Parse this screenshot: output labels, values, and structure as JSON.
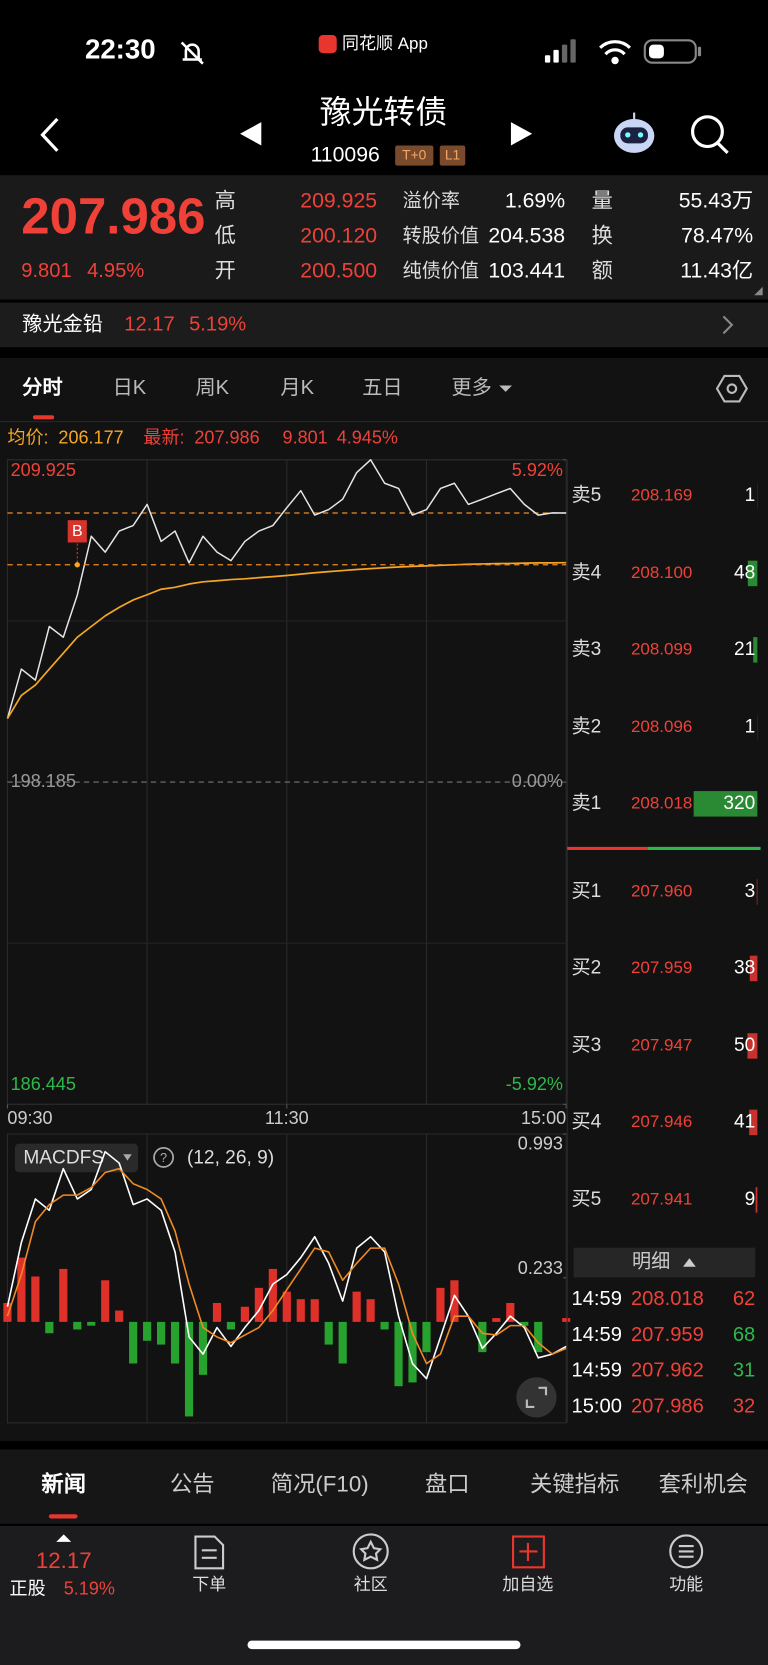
{
  "status_bar": {
    "time": "22:30",
    "app": "同花顺 App"
  },
  "header": {
    "title": "豫光转债",
    "code": "110096",
    "badges": [
      "T+0",
      "L1"
    ]
  },
  "quote": {
    "price": "207.986",
    "change": "9.801",
    "change_pct": "4.95%",
    "stats": [
      {
        "label": "高",
        "value": "209.925"
      },
      {
        "label": "低",
        "value": "200.120"
      },
      {
        "label": "开",
        "value": "200.500"
      },
      {
        "label": "溢价率",
        "value": "1.69%"
      },
      {
        "label": "转股价值",
        "value": "204.538"
      },
      {
        "label": "纯债价值",
        "value": "103.441"
      },
      {
        "label": "量",
        "value": "55.43万"
      },
      {
        "label": "换",
        "value": "78.47%"
      },
      {
        "label": "额",
        "value": "11.43亿"
      }
    ]
  },
  "underlying": {
    "name": "豫光金铅",
    "price": "12.17",
    "change_pct": "5.19%"
  },
  "tabs": [
    "分时",
    "日K",
    "周K",
    "月K",
    "五日",
    "更多"
  ],
  "info_line": {
    "avg_label": "均价:",
    "avg": "206.177",
    "latest_label": "最新:",
    "latest": "207.986",
    "change": "9.801",
    "change_pct": "4.945%"
  },
  "chart_data": [
    {
      "type": "line",
      "x": [
        0,
        6,
        12,
        18,
        24,
        30,
        36,
        42,
        48,
        54,
        60,
        66,
        72,
        78,
        84,
        90,
        96,
        102,
        108,
        114,
        120,
        126,
        132,
        138,
        144,
        150,
        156,
        162,
        168,
        174,
        180,
        186,
        192,
        198,
        204,
        210,
        216,
        222,
        228,
        234,
        240
      ],
      "xlim": [
        0,
        240
      ],
      "xticks": [
        {
          "value": 0,
          "label": "09:30"
        },
        {
          "value": 120,
          "label": "11:30"
        },
        {
          "value": 240,
          "label": "15:00"
        }
      ],
      "ylim": [
        186.445,
        209.925
      ],
      "yticks": [
        209.925,
        198.185,
        186.445
      ],
      "y2lim": [
        -5.92,
        5.92
      ],
      "y2ticks": [
        {
          "value": 5.92,
          "label": "5.92%"
        },
        {
          "value": 0,
          "label": "0.00%"
        },
        {
          "value": -5.92,
          "label": "-5.92%"
        }
      ],
      "series": [
        {
          "color": "#e6e6e6",
          "values": [
            200.5,
            202.3,
            201.9,
            203.85,
            203.46,
            205.0,
            207.14,
            206.56,
            207.33,
            207.53,
            208.3,
            206.95,
            207.33,
            206.17,
            207.14,
            206.56,
            206.25,
            206.95,
            207.33,
            207.53,
            208.18,
            208.8,
            207.91,
            208.11,
            208.49,
            209.46,
            209.925,
            209.07,
            208.88,
            207.91,
            208.11,
            208.88,
            209.07,
            208.3,
            208.49,
            208.69,
            208.88,
            208.3,
            207.91,
            207.99,
            207.986
          ]
        },
        {
          "color": "#f5a623",
          "values": [
            200.5,
            201.34,
            201.72,
            202.3,
            202.88,
            203.46,
            203.85,
            204.24,
            204.55,
            204.82,
            205.01,
            205.21,
            205.28,
            205.4,
            205.48,
            205.52,
            205.56,
            205.59,
            205.63,
            205.67,
            205.71,
            205.76,
            205.81,
            205.85,
            205.89,
            205.93,
            205.96,
            205.99,
            206.02,
            206.04,
            206.06,
            206.08,
            206.1,
            206.12,
            206.13,
            206.14,
            206.15,
            206.16,
            206.17,
            206.17,
            206.177
          ]
        }
      ],
      "reference_line": 207.986,
      "annotations": [
        {
          "text": "B",
          "x": 30,
          "y": 206.1
        }
      ],
      "grid": true
    },
    {
      "type": "macd",
      "title": "MACDFS",
      "params": "(12, 26, 9)",
      "x": [
        0,
        6,
        12,
        18,
        24,
        30,
        36,
        42,
        48,
        54,
        60,
        66,
        72,
        78,
        84,
        90,
        96,
        102,
        108,
        114,
        120,
        126,
        132,
        138,
        144,
        150,
        156,
        162,
        168,
        174,
        180,
        186,
        192,
        198,
        204,
        210,
        216,
        222,
        228,
        234,
        240
      ],
      "xlim": [
        0,
        240
      ],
      "ylim": [
        -0.534,
        0.993
      ],
      "yticks": [
        0.993,
        0.233
      ],
      "series": [
        {
          "type": "bar",
          "up_color": "#e0302a",
          "down_color": "#27a22e",
          "values": [
            0.1,
            0.34,
            0.24,
            -0.06,
            0.28,
            -0.04,
            -0.02,
            0.22,
            0.06,
            -0.22,
            -0.1,
            -0.12,
            -0.22,
            -0.5,
            -0.28,
            0.1,
            -0.04,
            0.08,
            0.18,
            0.28,
            0.16,
            0.12,
            0.12,
            -0.12,
            -0.22,
            0.16,
            0.12,
            -0.04,
            -0.34,
            -0.32,
            -0.16,
            0.18,
            0.22,
            0.0,
            -0.16,
            0.02,
            0.1,
            -0.02,
            -0.16,
            0.0,
            0.02
          ]
        },
        {
          "type": "line",
          "color": "#ffffff",
          "values": [
            0.08,
            0.42,
            0.65,
            0.59,
            0.81,
            0.65,
            0.7,
            0.9,
            0.84,
            0.62,
            0.65,
            0.59,
            0.37,
            -0.08,
            -0.17,
            -0.03,
            -0.13,
            -0.03,
            0.06,
            0.2,
            0.25,
            0.34,
            0.45,
            0.31,
            0.11,
            0.39,
            0.45,
            0.37,
            0.03,
            -0.22,
            -0.3,
            -0.08,
            0.14,
            0.03,
            -0.14,
            -0.06,
            0.03,
            -0.03,
            -0.19,
            -0.17,
            -0.13
          ]
        },
        {
          "type": "line",
          "color": "#f08a24",
          "values": [
            0.03,
            0.25,
            0.53,
            0.62,
            0.67,
            0.67,
            0.71,
            0.79,
            0.81,
            0.73,
            0.7,
            0.65,
            0.48,
            0.2,
            -0.03,
            -0.08,
            -0.11,
            -0.07,
            -0.03,
            0.06,
            0.17,
            0.28,
            0.39,
            0.37,
            0.22,
            0.31,
            0.39,
            0.39,
            0.2,
            -0.06,
            -0.22,
            -0.17,
            0.03,
            0.03,
            -0.06,
            -0.07,
            -0.02,
            -0.02,
            -0.11,
            -0.17,
            -0.14
          ]
        }
      ]
    }
  ],
  "order_book": {
    "ask_color": "#2a8a34",
    "bid_color": "#c8322c",
    "asks": [
      {
        "label": "卖5",
        "price": "208.169",
        "volume": 1
      },
      {
        "label": "卖4",
        "price": "208.100",
        "volume": 48
      },
      {
        "label": "卖3",
        "price": "208.099",
        "volume": 21
      },
      {
        "label": "卖2",
        "price": "208.096",
        "volume": 1
      },
      {
        "label": "卖1",
        "price": "208.018",
        "volume": 320
      }
    ],
    "bids": [
      {
        "label": "买1",
        "price": "207.960",
        "volume": 3
      },
      {
        "label": "买2",
        "price": "207.959",
        "volume": 38
      },
      {
        "label": "买3",
        "price": "207.947",
        "volume": 50
      },
      {
        "label": "买4",
        "price": "207.946",
        "volume": 41
      },
      {
        "label": "买5",
        "price": "207.941",
        "volume": 9
      }
    ]
  },
  "detail": {
    "title": "明细",
    "rows": [
      {
        "time": "14:59",
        "price": "208.018",
        "volume": "62",
        "color": "#ef4138"
      },
      {
        "time": "14:59",
        "price": "207.959",
        "volume": "68",
        "color": "#2db84d"
      },
      {
        "time": "14:59",
        "price": "207.962",
        "volume": "31",
        "color": "#2db84d"
      },
      {
        "time": "15:00",
        "price": "207.986",
        "volume": "32",
        "color": "#ef4138"
      }
    ]
  },
  "news_tabs": [
    "新闻",
    "公告",
    "简况(F10)",
    "盘口",
    "关键指标",
    "套利机会"
  ],
  "bottom_bar": {
    "price": "12.17",
    "label": "正股",
    "change_pct": "5.19%",
    "items": [
      "下单",
      "社区",
      "加自选",
      "功能"
    ]
  }
}
